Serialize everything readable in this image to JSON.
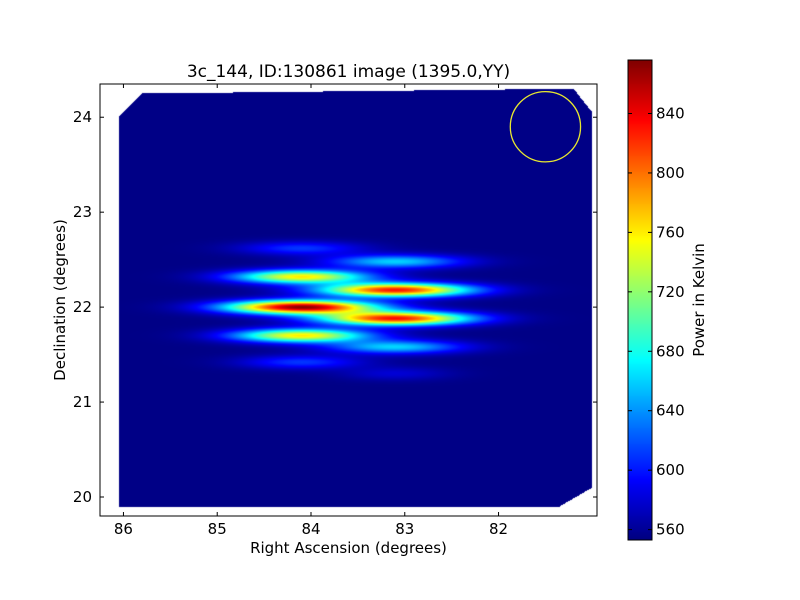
{
  "chart_data": {
    "type": "heatmap",
    "title": "3c_144, ID:130861 image (1395.0,YY)",
    "xlabel": "Right Ascension (degrees)",
    "ylabel": "Declination (degrees)",
    "xlim": [
      86.25,
      80.95
    ],
    "ylim": [
      19.8,
      24.35
    ],
    "x_inverted": true,
    "x_ticks": [
      86,
      85,
      84,
      83,
      82
    ],
    "y_ticks": [
      20,
      21,
      22,
      23,
      24
    ],
    "colorbar": {
      "label": "Power in Kelvin",
      "colormap": "jet",
      "min": 553,
      "max": 876,
      "ticks": [
        560,
        600,
        640,
        680,
        720,
        760,
        800,
        840
      ]
    },
    "background_value": 555,
    "coverage_polygon": [
      [
        86.05,
        19.9
      ],
      [
        86.05,
        24.0
      ],
      [
        85.8,
        24.25
      ],
      [
        81.2,
        24.3
      ],
      [
        81.0,
        24.05
      ],
      [
        81.0,
        20.1
      ],
      [
        81.35,
        19.9
      ]
    ],
    "sources": [
      {
        "ra": 84.1,
        "dec": 22.0,
        "peak": 870,
        "sigma_ra": 0.55,
        "sigma_dec": 0.05
      },
      {
        "ra": 84.1,
        "dec": 22.32,
        "peak": 760,
        "sigma_ra": 0.5,
        "sigma_dec": 0.05
      },
      {
        "ra": 84.1,
        "dec": 21.7,
        "peak": 760,
        "sigma_ra": 0.5,
        "sigma_dec": 0.05
      },
      {
        "ra": 84.1,
        "dec": 22.62,
        "peak": 610,
        "sigma_ra": 0.45,
        "sigma_dec": 0.05
      },
      {
        "ra": 84.1,
        "dec": 21.42,
        "peak": 610,
        "sigma_ra": 0.45,
        "sigma_dec": 0.05
      },
      {
        "ra": 83.1,
        "dec": 22.18,
        "peak": 830,
        "sigma_ra": 0.55,
        "sigma_dec": 0.05
      },
      {
        "ra": 83.1,
        "dec": 21.88,
        "peak": 830,
        "sigma_ra": 0.55,
        "sigma_dec": 0.05
      },
      {
        "ra": 83.1,
        "dec": 22.48,
        "peak": 660,
        "sigma_ra": 0.5,
        "sigma_dec": 0.05
      },
      {
        "ra": 83.1,
        "dec": 21.58,
        "peak": 660,
        "sigma_ra": 0.5,
        "sigma_dec": 0.05
      },
      {
        "ra": 83.1,
        "dec": 21.3,
        "peak": 580,
        "sigma_ra": 0.4,
        "sigma_dec": 0.05
      }
    ],
    "marker_circle": {
      "ra": 81.5,
      "dec": 23.9,
      "radius_deg": 0.37,
      "color": "#e8e830"
    }
  }
}
